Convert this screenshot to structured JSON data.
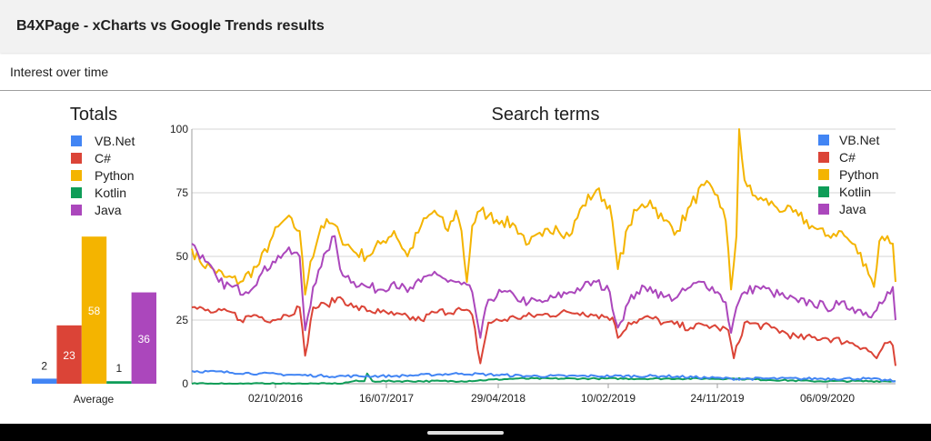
{
  "header": {
    "title": "B4XPage - xCharts vs Google Trends results"
  },
  "section": {
    "title": "Interest over time"
  },
  "colors": {
    "vbnet": "#4285f4",
    "csharp": "#db4437",
    "python": "#f4b400",
    "kotlin": "#0f9d58",
    "java": "#ab47bc",
    "grid": "#d6d6d6",
    "axis": "#9e9e9e",
    "text": "#202020"
  },
  "chart_data": [
    {
      "type": "bar",
      "title": "Totals",
      "categories": [
        "Average"
      ],
      "legend_position": "top-left",
      "series": [
        {
          "name": "VB.Net",
          "values": [
            2
          ]
        },
        {
          "name": "C#",
          "values": [
            23
          ]
        },
        {
          "name": "Python",
          "values": [
            58
          ]
        },
        {
          "name": "Kotlin",
          "values": [
            1
          ]
        },
        {
          "name": "Java",
          "values": [
            36
          ]
        }
      ],
      "ylim": [
        0,
        100
      ]
    },
    {
      "type": "line",
      "title": "Search terms",
      "x_tick_labels": [
        "02/10/2016",
        "16/07/2017",
        "29/04/2018",
        "10/02/2019",
        "24/11/2019",
        "06/09/2020"
      ],
      "y_tick_labels": [
        "0",
        "25",
        "50",
        "75",
        "100"
      ],
      "ylim": [
        0,
        100
      ],
      "grid": true,
      "legend_position": "top-right",
      "x_range": [
        "2016-01-31",
        "2021-01-17"
      ],
      "series": [
        {
          "name": "VB.Net",
          "anchors": [
            [
              0,
              5
            ],
            [
              25,
              4
            ],
            [
              50,
              3
            ],
            [
              75,
              3
            ],
            [
              100,
              4
            ],
            [
              125,
              3
            ],
            [
              150,
              3
            ],
            [
              175,
              3
            ],
            [
              200,
              2
            ],
            [
              225,
              2
            ],
            [
              250,
              2
            ],
            [
              261,
              1
            ]
          ],
          "noise": 0.5
        },
        {
          "name": "C#",
          "anchors": [
            [
              0,
              30
            ],
            [
              8,
              28
            ],
            [
              15,
              28
            ],
            [
              18,
              25
            ],
            [
              23,
              27
            ],
            [
              30,
              25
            ],
            [
              35,
              27
            ],
            [
              40,
              30
            ],
            [
              42,
              11
            ],
            [
              45,
              30
            ],
            [
              50,
              31
            ],
            [
              55,
              34
            ],
            [
              60,
              30
            ],
            [
              70,
              28
            ],
            [
              75,
              27
            ],
            [
              85,
              25
            ],
            [
              90,
              28
            ],
            [
              100,
              29
            ],
            [
              104,
              27
            ],
            [
              107,
              8
            ],
            [
              110,
              24
            ],
            [
              120,
              26
            ],
            [
              130,
              27
            ],
            [
              140,
              28
            ],
            [
              145,
              28
            ],
            [
              150,
              27
            ],
            [
              156,
              26
            ],
            [
              158,
              18
            ],
            [
              162,
              24
            ],
            [
              170,
              26
            ],
            [
              175,
              24
            ],
            [
              185,
              22
            ],
            [
              190,
              23
            ],
            [
              195,
              22
            ],
            [
              199,
              21
            ],
            [
              201,
              10
            ],
            [
              205,
              24
            ],
            [
              215,
              22
            ],
            [
              225,
              18
            ],
            [
              235,
              18
            ],
            [
              245,
              16
            ],
            [
              250,
              14
            ],
            [
              254,
              10
            ],
            [
              257,
              16
            ],
            [
              260,
              15
            ],
            [
              261,
              7
            ]
          ],
          "noise": 1.5
        },
        {
          "name": "Python",
          "anchors": [
            [
              0,
              53
            ],
            [
              3,
              48
            ],
            [
              8,
              45
            ],
            [
              12,
              42
            ],
            [
              18,
              40
            ],
            [
              25,
              47
            ],
            [
              30,
              58
            ],
            [
              35,
              65
            ],
            [
              40,
              60
            ],
            [
              42,
              35
            ],
            [
              44,
              48
            ],
            [
              48,
              62
            ],
            [
              52,
              63
            ],
            [
              55,
              58
            ],
            [
              60,
              52
            ],
            [
              65,
              50
            ],
            [
              70,
              55
            ],
            [
              75,
              60
            ],
            [
              80,
              50
            ],
            [
              85,
              62
            ],
            [
              90,
              68
            ],
            [
              95,
              60
            ],
            [
              98,
              68
            ],
            [
              100,
              60
            ],
            [
              102,
              40
            ],
            [
              104,
              62
            ],
            [
              107,
              68
            ],
            [
              110,
              66
            ],
            [
              115,
              64
            ],
            [
              120,
              62
            ],
            [
              125,
              55
            ],
            [
              130,
              58
            ],
            [
              135,
              62
            ],
            [
              140,
              58
            ],
            [
              145,
              70
            ],
            [
              150,
              76
            ],
            [
              155,
              70
            ],
            [
              158,
              45
            ],
            [
              162,
              62
            ],
            [
              165,
              68
            ],
            [
              170,
              72
            ],
            [
              175,
              64
            ],
            [
              180,
              60
            ],
            [
              185,
              70
            ],
            [
              190,
              78
            ],
            [
              195,
              74
            ],
            [
              198,
              64
            ],
            [
              200,
              37
            ],
            [
              202,
              58
            ],
            [
              203,
              100
            ],
            [
              205,
              80
            ],
            [
              208,
              74
            ],
            [
              212,
              72
            ],
            [
              216,
              70
            ],
            [
              220,
              68
            ],
            [
              225,
              66
            ],
            [
              230,
              62
            ],
            [
              235,
              58
            ],
            [
              240,
              60
            ],
            [
              245,
              55
            ],
            [
              250,
              47
            ],
            [
              253,
              38
            ],
            [
              255,
              56
            ],
            [
              258,
              58
            ],
            [
              260,
              55
            ],
            [
              261,
              40
            ]
          ],
          "noise": 2.5
        },
        {
          "name": "Kotlin",
          "anchors": [
            [
              0,
              0
            ],
            [
              55,
              0
            ],
            [
              60,
              1
            ],
            [
              64,
              1
            ],
            [
              65,
              4
            ],
            [
              67,
              1
            ],
            [
              100,
              1
            ],
            [
              120,
              2
            ],
            [
              150,
              2
            ],
            [
              180,
              2
            ],
            [
              200,
              2
            ],
            [
              230,
              1
            ],
            [
              261,
              1
            ]
          ],
          "noise": 0.3
        },
        {
          "name": "Java",
          "anchors": [
            [
              0,
              55
            ],
            [
              5,
              48
            ],
            [
              10,
              40
            ],
            [
              15,
              38
            ],
            [
              20,
              36
            ],
            [
              25,
              42
            ],
            [
              30,
              48
            ],
            [
              35,
              52
            ],
            [
              40,
              50
            ],
            [
              42,
              21
            ],
            [
              45,
              38
            ],
            [
              48,
              46
            ],
            [
              50,
              52
            ],
            [
              53,
              58
            ],
            [
              55,
              45
            ],
            [
              60,
              40
            ],
            [
              65,
              38
            ],
            [
              70,
              37
            ],
            [
              75,
              40
            ],
            [
              80,
              36
            ],
            [
              85,
              40
            ],
            [
              90,
              44
            ],
            [
              95,
              40
            ],
            [
              100,
              39
            ],
            [
              104,
              36
            ],
            [
              107,
              18
            ],
            [
              110,
              33
            ],
            [
              115,
              36
            ],
            [
              120,
              34
            ],
            [
              125,
              32
            ],
            [
              130,
              32
            ],
            [
              135,
              34
            ],
            [
              140,
              36
            ],
            [
              145,
              38
            ],
            [
              150,
              40
            ],
            [
              155,
              36
            ],
            [
              158,
              22
            ],
            [
              162,
              32
            ],
            [
              165,
              36
            ],
            [
              170,
              38
            ],
            [
              175,
              34
            ],
            [
              180,
              34
            ],
            [
              185,
              38
            ],
            [
              190,
              40
            ],
            [
              195,
              36
            ],
            [
              198,
              32
            ],
            [
              200,
              20
            ],
            [
              202,
              30
            ],
            [
              205,
              36
            ],
            [
              210,
              38
            ],
            [
              215,
              36
            ],
            [
              220,
              34
            ],
            [
              225,
              32
            ],
            [
              230,
              32
            ],
            [
              235,
              30
            ],
            [
              240,
              31
            ],
            [
              245,
              30
            ],
            [
              250,
              28
            ],
            [
              252,
              26
            ],
            [
              255,
              32
            ],
            [
              258,
              36
            ],
            [
              260,
              38
            ],
            [
              261,
              25
            ]
          ],
          "noise": 2.0
        }
      ]
    }
  ]
}
